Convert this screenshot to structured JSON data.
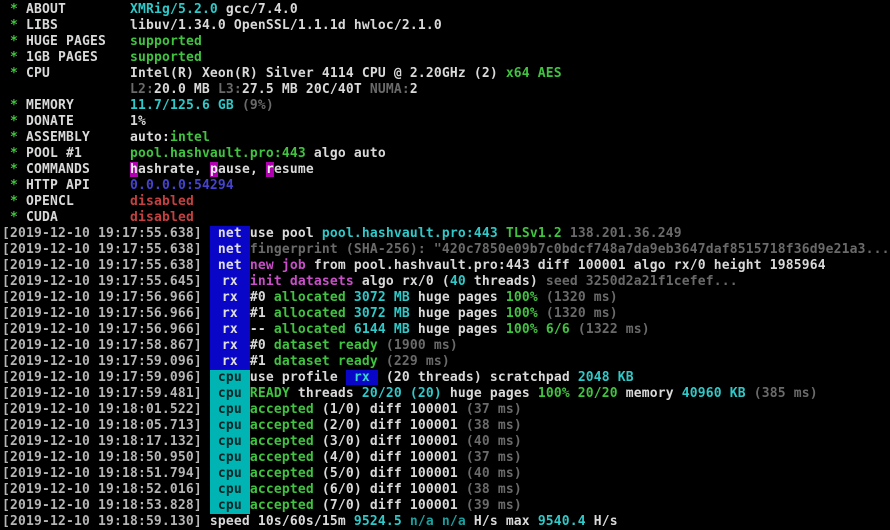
{
  "terminal": {
    "colors": {
      "bg": "#000000",
      "ts": "#b5b5b5",
      "white": "#d9d9d9",
      "green": "#3fc43f",
      "cyan": "#2fc9c9",
      "teal": "#1a9f9f",
      "magenta": "#c94fc9",
      "dim": "#6a6a6a",
      "red": "#c44040",
      "blue": "#4743cf",
      "hl-magenta": "#b000b0",
      "badge-blue": "#0a06c8",
      "badge-cyan": "#00b4b4"
    },
    "config_lines": [
      {
        "segments": [
          {
            "t": " * ",
            "c": "g"
          },
          {
            "t": "ABOUT        ",
            "c": "w"
          },
          {
            "t": "XMRig/5.2.0",
            "c": "c"
          },
          {
            "t": " gcc/7.4.0",
            "c": "w"
          }
        ]
      },
      {
        "segments": [
          {
            "t": " * ",
            "c": "g"
          },
          {
            "t": "LIBS         ",
            "c": "w"
          },
          {
            "t": "libuv/1.34.0 OpenSSL/1.1.1d hwloc/2.1.0",
            "c": "w"
          }
        ]
      },
      {
        "segments": [
          {
            "t": " * ",
            "c": "g"
          },
          {
            "t": "HUGE PAGES   ",
            "c": "w"
          },
          {
            "t": "supported",
            "c": "g"
          }
        ]
      },
      {
        "segments": [
          {
            "t": " * ",
            "c": "g"
          },
          {
            "t": "1GB PAGES    ",
            "c": "w"
          },
          {
            "t": "supported",
            "c": "g"
          }
        ]
      },
      {
        "segments": [
          {
            "t": " * ",
            "c": "g"
          },
          {
            "t": "CPU          ",
            "c": "w"
          },
          {
            "t": "Intel(R) Xeon(R) Silver 4114 CPU @ 2.20GHz (2) ",
            "c": "w"
          },
          {
            "t": "x64 AES",
            "c": "g"
          }
        ]
      },
      {
        "segments": [
          {
            "t": "                ",
            "c": "w"
          },
          {
            "t": "L2:",
            "c": "d"
          },
          {
            "t": "20.0 MB ",
            "c": "w"
          },
          {
            "t": "L3:",
            "c": "d"
          },
          {
            "t": "27.5 MB 20C/40T ",
            "c": "w"
          },
          {
            "t": "NUMA:",
            "c": "d"
          },
          {
            "t": "2",
            "c": "w"
          }
        ]
      },
      {
        "segments": [
          {
            "t": " * ",
            "c": "g"
          },
          {
            "t": "MEMORY       ",
            "c": "w"
          },
          {
            "t": "11.7/125.6 GB ",
            "c": "c"
          },
          {
            "t": "(9%)",
            "c": "d"
          }
        ]
      },
      {
        "segments": [
          {
            "t": " * ",
            "c": "g"
          },
          {
            "t": "DONATE       ",
            "c": "w"
          },
          {
            "t": "1%",
            "c": "w"
          }
        ]
      },
      {
        "segments": [
          {
            "t": " * ",
            "c": "g"
          },
          {
            "t": "ASSEMBLY     ",
            "c": "w"
          },
          {
            "t": "auto:",
            "c": "w"
          },
          {
            "t": "intel",
            "c": "g"
          }
        ]
      },
      {
        "segments": [
          {
            "t": " * ",
            "c": "g"
          },
          {
            "t": "POOL #1      ",
            "c": "w"
          },
          {
            "t": "pool.hashvault.pro:443",
            "c": "g"
          },
          {
            "t": " algo auto",
            "c": "w"
          }
        ]
      },
      {
        "segments": [
          {
            "t": " * ",
            "c": "g"
          },
          {
            "t": "COMMANDS     ",
            "c": "w"
          },
          {
            "t": "h",
            "c": "hm"
          },
          {
            "t": "ashrate, ",
            "c": "w"
          },
          {
            "t": "p",
            "c": "hm"
          },
          {
            "t": "ause, ",
            "c": "w"
          },
          {
            "t": "r",
            "c": "hm"
          },
          {
            "t": "esume",
            "c": "w"
          }
        ]
      },
      {
        "segments": [
          {
            "t": " * ",
            "c": "g"
          },
          {
            "t": "HTTP API     ",
            "c": "w"
          },
          {
            "t": "0.0.0.0:54294",
            "c": "b"
          }
        ]
      },
      {
        "segments": [
          {
            "t": " * ",
            "c": "g"
          },
          {
            "t": "OPENCL       ",
            "c": "w"
          },
          {
            "t": "disabled",
            "c": "r"
          }
        ]
      },
      {
        "segments": [
          {
            "t": " * ",
            "c": "g"
          },
          {
            "t": "CUDA         ",
            "c": "w"
          },
          {
            "t": "disabled",
            "c": "r"
          }
        ]
      }
    ],
    "log_lines": [
      {
        "ts": "[2019-12-10 19:17:55.638]",
        "badge": {
          "label": "net",
          "type": "net"
        },
        "segments": [
          {
            "t": "use pool ",
            "c": "w"
          },
          {
            "t": "pool.hashvault.pro:443 ",
            "c": "c"
          },
          {
            "t": "TLSv1.2 ",
            "c": "g"
          },
          {
            "t": "138.201.36.249",
            "c": "d"
          }
        ]
      },
      {
        "ts": "[2019-12-10 19:17:55.638]",
        "badge": {
          "label": "net",
          "type": "net"
        },
        "segments": [
          {
            "t": "fingerprint (SHA-256): \"420c7850e09b7c0bdcf748a7da9eb3647daf8515718f36d9e21a3...",
            "c": "d"
          }
        ]
      },
      {
        "ts": "[2019-12-10 19:17:55.638]",
        "badge": {
          "label": "net",
          "type": "net"
        },
        "segments": [
          {
            "t": "new job",
            "c": "m"
          },
          {
            "t": " from pool.hashvault.pro:443 diff 100001 algo rx/0 height 1985964",
            "c": "w"
          }
        ]
      },
      {
        "ts": "[2019-12-10 19:17:55.645]",
        "badge": {
          "label": "rx",
          "type": "rx"
        },
        "segments": [
          {
            "t": "init datasets",
            "c": "m"
          },
          {
            "t": " algo rx/0 (",
            "c": "w"
          },
          {
            "t": "40",
            "c": "c"
          },
          {
            "t": " threads) ",
            "c": "w"
          },
          {
            "t": "seed 3250d2a21f1cefef...",
            "c": "d"
          }
        ]
      },
      {
        "ts": "[2019-12-10 19:17:56.966]",
        "badge": {
          "label": "rx",
          "type": "rx"
        },
        "segments": [
          {
            "t": "#0 ",
            "c": "w"
          },
          {
            "t": "allocated ",
            "c": "g"
          },
          {
            "t": "3072 MB ",
            "c": "c"
          },
          {
            "t": "huge pages ",
            "c": "w"
          },
          {
            "t": "100% ",
            "c": "g"
          },
          {
            "t": "(1320 ms)",
            "c": "d"
          }
        ]
      },
      {
        "ts": "[2019-12-10 19:17:56.966]",
        "badge": {
          "label": "rx",
          "type": "rx"
        },
        "segments": [
          {
            "t": "#1 ",
            "c": "w"
          },
          {
            "t": "allocated ",
            "c": "g"
          },
          {
            "t": "3072 MB ",
            "c": "c"
          },
          {
            "t": "huge pages ",
            "c": "w"
          },
          {
            "t": "100% ",
            "c": "g"
          },
          {
            "t": "(1320 ms)",
            "c": "d"
          }
        ]
      },
      {
        "ts": "[2019-12-10 19:17:56.966]",
        "badge": {
          "label": "rx",
          "type": "rx"
        },
        "segments": [
          {
            "t": "-- ",
            "c": "w"
          },
          {
            "t": "allocated ",
            "c": "g"
          },
          {
            "t": "6144 MB ",
            "c": "c"
          },
          {
            "t": "huge pages ",
            "c": "w"
          },
          {
            "t": "100% 6/6 ",
            "c": "g"
          },
          {
            "t": "(1322 ms)",
            "c": "d"
          }
        ]
      },
      {
        "ts": "[2019-12-10 19:17:58.867]",
        "badge": {
          "label": "rx",
          "type": "rx"
        },
        "segments": [
          {
            "t": "#0 ",
            "c": "w"
          },
          {
            "t": "dataset ready ",
            "c": "g"
          },
          {
            "t": "(1900 ms)",
            "c": "d"
          }
        ]
      },
      {
        "ts": "[2019-12-10 19:17:59.096]",
        "badge": {
          "label": "rx",
          "type": "rx"
        },
        "segments": [
          {
            "t": "#1 ",
            "c": "w"
          },
          {
            "t": "dataset ready ",
            "c": "g"
          },
          {
            "t": "(229 ms)",
            "c": "d"
          }
        ]
      },
      {
        "ts": "[2019-12-10 19:17:59.096]",
        "badge": {
          "label": "cpu",
          "type": "cpu"
        },
        "segments": [
          {
            "t": "use profile ",
            "c": "w"
          },
          {
            "t": " rx ",
            "c": "rx"
          },
          {
            "t": " (20 threads) scratchpad ",
            "c": "w"
          },
          {
            "t": "2048 KB",
            "c": "c"
          }
        ]
      },
      {
        "ts": "[2019-12-10 19:17:59.481]",
        "badge": {
          "label": "cpu",
          "type": "cpu"
        },
        "segments": [
          {
            "t": "READY",
            "c": "g"
          },
          {
            "t": " threads ",
            "c": "w"
          },
          {
            "t": "20/20 (20)",
            "c": "c"
          },
          {
            "t": " huge pages ",
            "c": "w"
          },
          {
            "t": "100% 20/20",
            "c": "g"
          },
          {
            "t": " memory ",
            "c": "w"
          },
          {
            "t": "40960 KB ",
            "c": "c"
          },
          {
            "t": "(385 ms)",
            "c": "d"
          }
        ]
      },
      {
        "ts": "[2019-12-10 19:18:01.522]",
        "badge": {
          "label": "cpu",
          "type": "cpu"
        },
        "segments": [
          {
            "t": "accepted ",
            "c": "g"
          },
          {
            "t": "(1/0) diff 100001 ",
            "c": "w"
          },
          {
            "t": "(37 ms)",
            "c": "d"
          }
        ]
      },
      {
        "ts": "[2019-12-10 19:18:05.713]",
        "badge": {
          "label": "cpu",
          "type": "cpu"
        },
        "segments": [
          {
            "t": "accepted ",
            "c": "g"
          },
          {
            "t": "(2/0) diff 100001 ",
            "c": "w"
          },
          {
            "t": "(38 ms)",
            "c": "d"
          }
        ]
      },
      {
        "ts": "[2019-12-10 19:18:17.132]",
        "badge": {
          "label": "cpu",
          "type": "cpu"
        },
        "segments": [
          {
            "t": "accepted ",
            "c": "g"
          },
          {
            "t": "(3/0) diff 100001 ",
            "c": "w"
          },
          {
            "t": "(40 ms)",
            "c": "d"
          }
        ]
      },
      {
        "ts": "[2019-12-10 19:18:50.950]",
        "badge": {
          "label": "cpu",
          "type": "cpu"
        },
        "segments": [
          {
            "t": "accepted ",
            "c": "g"
          },
          {
            "t": "(4/0) diff 100001 ",
            "c": "w"
          },
          {
            "t": "(37 ms)",
            "c": "d"
          }
        ]
      },
      {
        "ts": "[2019-12-10 19:18:51.794]",
        "badge": {
          "label": "cpu",
          "type": "cpu"
        },
        "segments": [
          {
            "t": "accepted ",
            "c": "g"
          },
          {
            "t": "(5/0) diff 100001 ",
            "c": "w"
          },
          {
            "t": "(40 ms)",
            "c": "d"
          }
        ]
      },
      {
        "ts": "[2019-12-10 19:18:52.016]",
        "badge": {
          "label": "cpu",
          "type": "cpu"
        },
        "segments": [
          {
            "t": "accepted ",
            "c": "g"
          },
          {
            "t": "(6/0) diff 100001 ",
            "c": "w"
          },
          {
            "t": "(38 ms)",
            "c": "d"
          }
        ]
      },
      {
        "ts": "[2019-12-10 19:18:53.828]",
        "badge": {
          "label": "cpu",
          "type": "cpu"
        },
        "segments": [
          {
            "t": "accepted ",
            "c": "g"
          },
          {
            "t": "(7/0) diff 100001 ",
            "c": "w"
          },
          {
            "t": "(39 ms)",
            "c": "d"
          }
        ]
      },
      {
        "ts": "[2019-12-10 19:18:59.130]",
        "badge": null,
        "segments": [
          {
            "t": " speed 10s/60s/15m ",
            "c": "w"
          },
          {
            "t": "9524.5 ",
            "c": "c"
          },
          {
            "t": "n/a n/a ",
            "c": "t"
          },
          {
            "t": "H/s max ",
            "c": "w"
          },
          {
            "t": "9540.4 ",
            "c": "c"
          },
          {
            "t": "H/s",
            "c": "w"
          }
        ]
      }
    ]
  }
}
